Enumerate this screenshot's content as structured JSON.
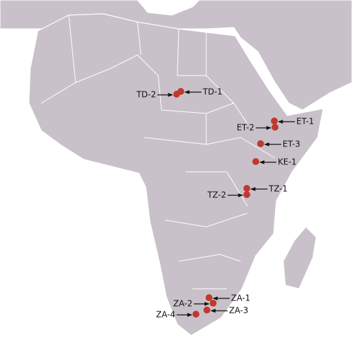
{
  "sites": [
    {
      "label": "TD-1"
    },
    {
      "label": "TD-2"
    },
    {
      "label": "ET-1"
    },
    {
      "label": "ET-2"
    },
    {
      "label": "ET-3"
    },
    {
      "label": "KE-1"
    },
    {
      "label": "TZ-1"
    },
    {
      "label": "TZ-2"
    },
    {
      "label": "ZA-1"
    },
    {
      "label": "ZA-2"
    },
    {
      "label": "ZA-3"
    },
    {
      "label": "ZA-4"
    }
  ]
}
